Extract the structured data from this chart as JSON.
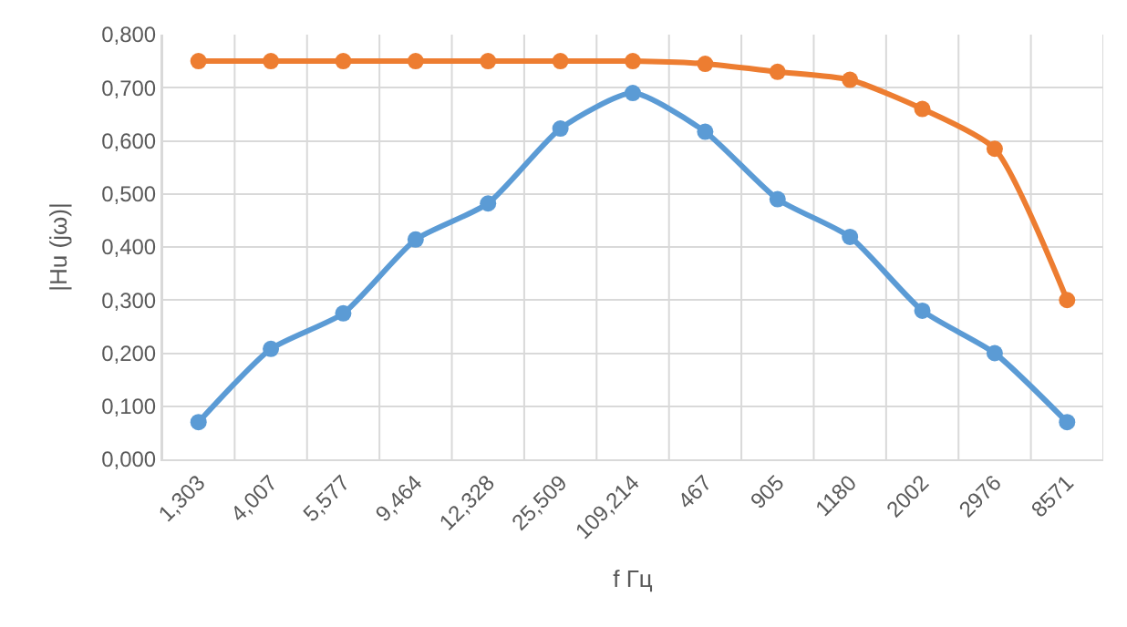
{
  "chart_data": {
    "type": "line",
    "xlabel": "f Гц",
    "ylabel": "|Hu (jω)|",
    "categories": [
      "1,303",
      "4,007",
      "5,577",
      "9,464",
      "12,328",
      "25,509",
      "109,214",
      "467",
      "905",
      "1180",
      "2002",
      "2976",
      "8571"
    ],
    "series": [
      {
        "color": "#5b9bd5",
        "values": [
          0.07,
          0.208,
          0.275,
          0.414,
          0.482,
          0.623,
          0.69,
          0.617,
          0.49,
          0.419,
          0.28,
          0.2,
          0.07
        ]
      },
      {
        "color": "#ed7d31",
        "values": [
          0.75,
          0.75,
          0.75,
          0.75,
          0.75,
          0.75,
          0.75,
          0.745,
          0.73,
          0.715,
          0.66,
          0.585,
          0.3
        ]
      }
    ],
    "ylim": [
      0,
      0.8
    ],
    "yticks": [
      {
        "value": 0,
        "label": "0,000"
      },
      {
        "value": 0.1,
        "label": "0,100"
      },
      {
        "value": 0.2,
        "label": "0,200"
      },
      {
        "value": 0.3,
        "label": "0,300"
      },
      {
        "value": 0.4,
        "label": "0,400"
      },
      {
        "value": 0.5,
        "label": "0,500"
      },
      {
        "value": 0.6,
        "label": "0,600"
      },
      {
        "value": 0.7,
        "label": "0,700"
      },
      {
        "value": 0.8,
        "label": "0,800"
      }
    ],
    "grid": true,
    "marker": "circle",
    "line_style": "solid"
  }
}
